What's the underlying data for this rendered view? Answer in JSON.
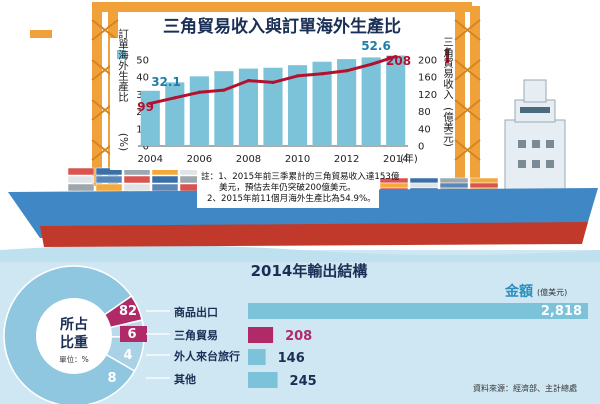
{
  "colors": {
    "bars": "#7cc3da",
    "line": "#b5102e",
    "label_blue": "#1f7ea8",
    "hull_top": "#3f87c5",
    "hull_bottom": "#c0392b",
    "sea": "#cfe7f3",
    "crane": "#f0a13a"
  },
  "icons": {
    "legend_bar": "blue-bar-legend-icon",
    "legend_line": "red-line-legend-icon"
  },
  "chart_data": [
    {
      "type": "bar+line",
      "title": "三角貿易收入與訂單海外生產比",
      "x": [
        2004,
        2005,
        2006,
        2007,
        2008,
        2009,
        2010,
        2011,
        2012,
        2013,
        2014
      ],
      "xticks": [
        "2004",
        "2006",
        "2008",
        "2010",
        "2012",
        "2014"
      ],
      "xunit": "(年)",
      "series": [
        {
          "name": "訂單海外生產比",
          "kind": "bar",
          "axis": "left",
          "values": [
            32.1,
            37,
            40.5,
            43.5,
            45,
            45.5,
            47,
            49,
            50.5,
            51.5,
            52.6
          ]
        },
        {
          "name": "三角貿易收入",
          "kind": "line",
          "axis": "right",
          "values": [
            99,
            112,
            125,
            130,
            152,
            148,
            163,
            168,
            175,
            190,
            208
          ]
        }
      ],
      "left_axis": {
        "label": "訂單海外生產比",
        "unit": "(%)",
        "ylim": [
          0,
          50
        ],
        "ticks": [
          "0",
          "10",
          "20",
          "30",
          "40",
          "50"
        ]
      },
      "right_axis": {
        "label": "三角貿易收入",
        "unit": "(億美元)",
        "ylim": [
          0,
          200
        ],
        "ticks": [
          "0",
          "40",
          "80",
          "120",
          "160",
          "200"
        ]
      },
      "data_labels": {
        "bar_first": "32.1",
        "bar_last": "52.6",
        "line_first": "99",
        "line_last": "208"
      },
      "notes": [
        "註：1、2015年前三季累計的三角貿易收入達153億",
        "美元，預估去年仍突破200億美元。",
        "2、2015年前11個月海外生產比為54.9%。"
      ]
    },
    {
      "type": "pie",
      "title": "2014年輸出結構",
      "center_label": [
        "所占",
        "比重"
      ],
      "unit_label": "單位：%",
      "categories": [
        "商品出口",
        "三角貿易",
        "外人來台旅行",
        "其他"
      ],
      "values": [
        82,
        6,
        4,
        8
      ]
    },
    {
      "type": "bar",
      "orientation": "horizontal",
      "title": "金額",
      "unit": "(億美元)",
      "categories": [
        "商品出口",
        "三角貿易",
        "外人來台旅行",
        "其他"
      ],
      "values": [
        2818,
        208,
        146,
        245
      ],
      "value_labels": [
        "2,818",
        "208",
        "146",
        "245"
      ],
      "xlim": [
        0,
        2818
      ]
    }
  ],
  "source": "資料來源：經濟部、主計總處"
}
